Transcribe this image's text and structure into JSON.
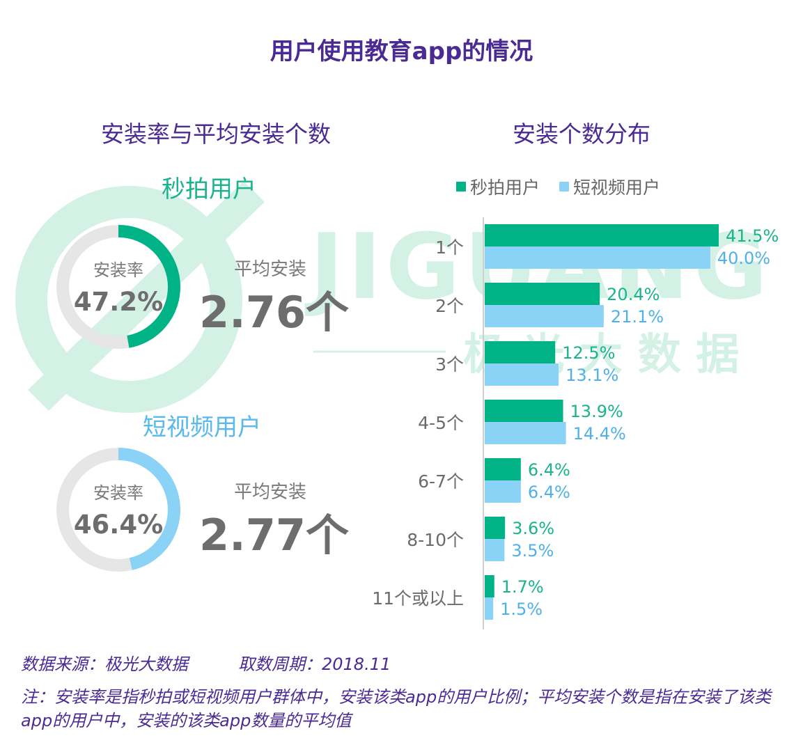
{
  "title": "用户使用教育app的情况",
  "left_panel": {
    "title": "安装率与平均安装个数",
    "groups": [
      {
        "name": "秒拍用户",
        "rate_label": "安装率",
        "rate_text": "47.2%",
        "rate_value": 47.2,
        "avg_label": "平均安装",
        "avg_text": "2.76个",
        "color": "#00b386"
      },
      {
        "name": "短视频用户",
        "rate_label": "安装率",
        "rate_text": "46.4%",
        "rate_value": 46.4,
        "avg_label": "平均安装",
        "avg_text": "2.77个",
        "color": "#8ad3f6"
      }
    ]
  },
  "watermark": {
    "brand": "JIGUANG",
    "cn": "极 光 大 数 据"
  },
  "chart_data": {
    "type": "bar",
    "orientation": "horizontal",
    "title": "安装个数分布",
    "categories": [
      "1个",
      "2个",
      "3个",
      "4-5个",
      "6-7个",
      "8-10个",
      "11个或以上"
    ],
    "series": [
      {
        "name": "秒拍用户",
        "values": [
          41.5,
          20.4,
          12.5,
          13.9,
          6.4,
          3.6,
          1.7
        ],
        "labels": [
          "41.5%",
          "20.4%",
          "12.5%",
          "13.9%",
          "6.4%",
          "3.6%",
          "1.7%"
        ],
        "color": "#00b386",
        "label_color": "#19b48c"
      },
      {
        "name": "短视频用户",
        "values": [
          40.0,
          21.1,
          13.1,
          14.4,
          6.4,
          3.5,
          1.5
        ],
        "labels": [
          "40.0%",
          "21.1%",
          "13.1%",
          "14.4%",
          "6.4%",
          "3.5%",
          "1.5%"
        ],
        "color": "#8ad3f6",
        "label_color": "#4fb1e6"
      }
    ],
    "xlim": [
      0,
      41.5
    ],
    "legend_position": "top",
    "grid": false
  },
  "footer": {
    "source": "数据来源：极光大数据",
    "period": "取数周期：2018.11",
    "note": "注：安装率是指秒拍或短视频用户群体中，安装该类app的用户比例；平均安装个数是指在安装了该类app的用户中，安装的该类app数量的平均值"
  }
}
